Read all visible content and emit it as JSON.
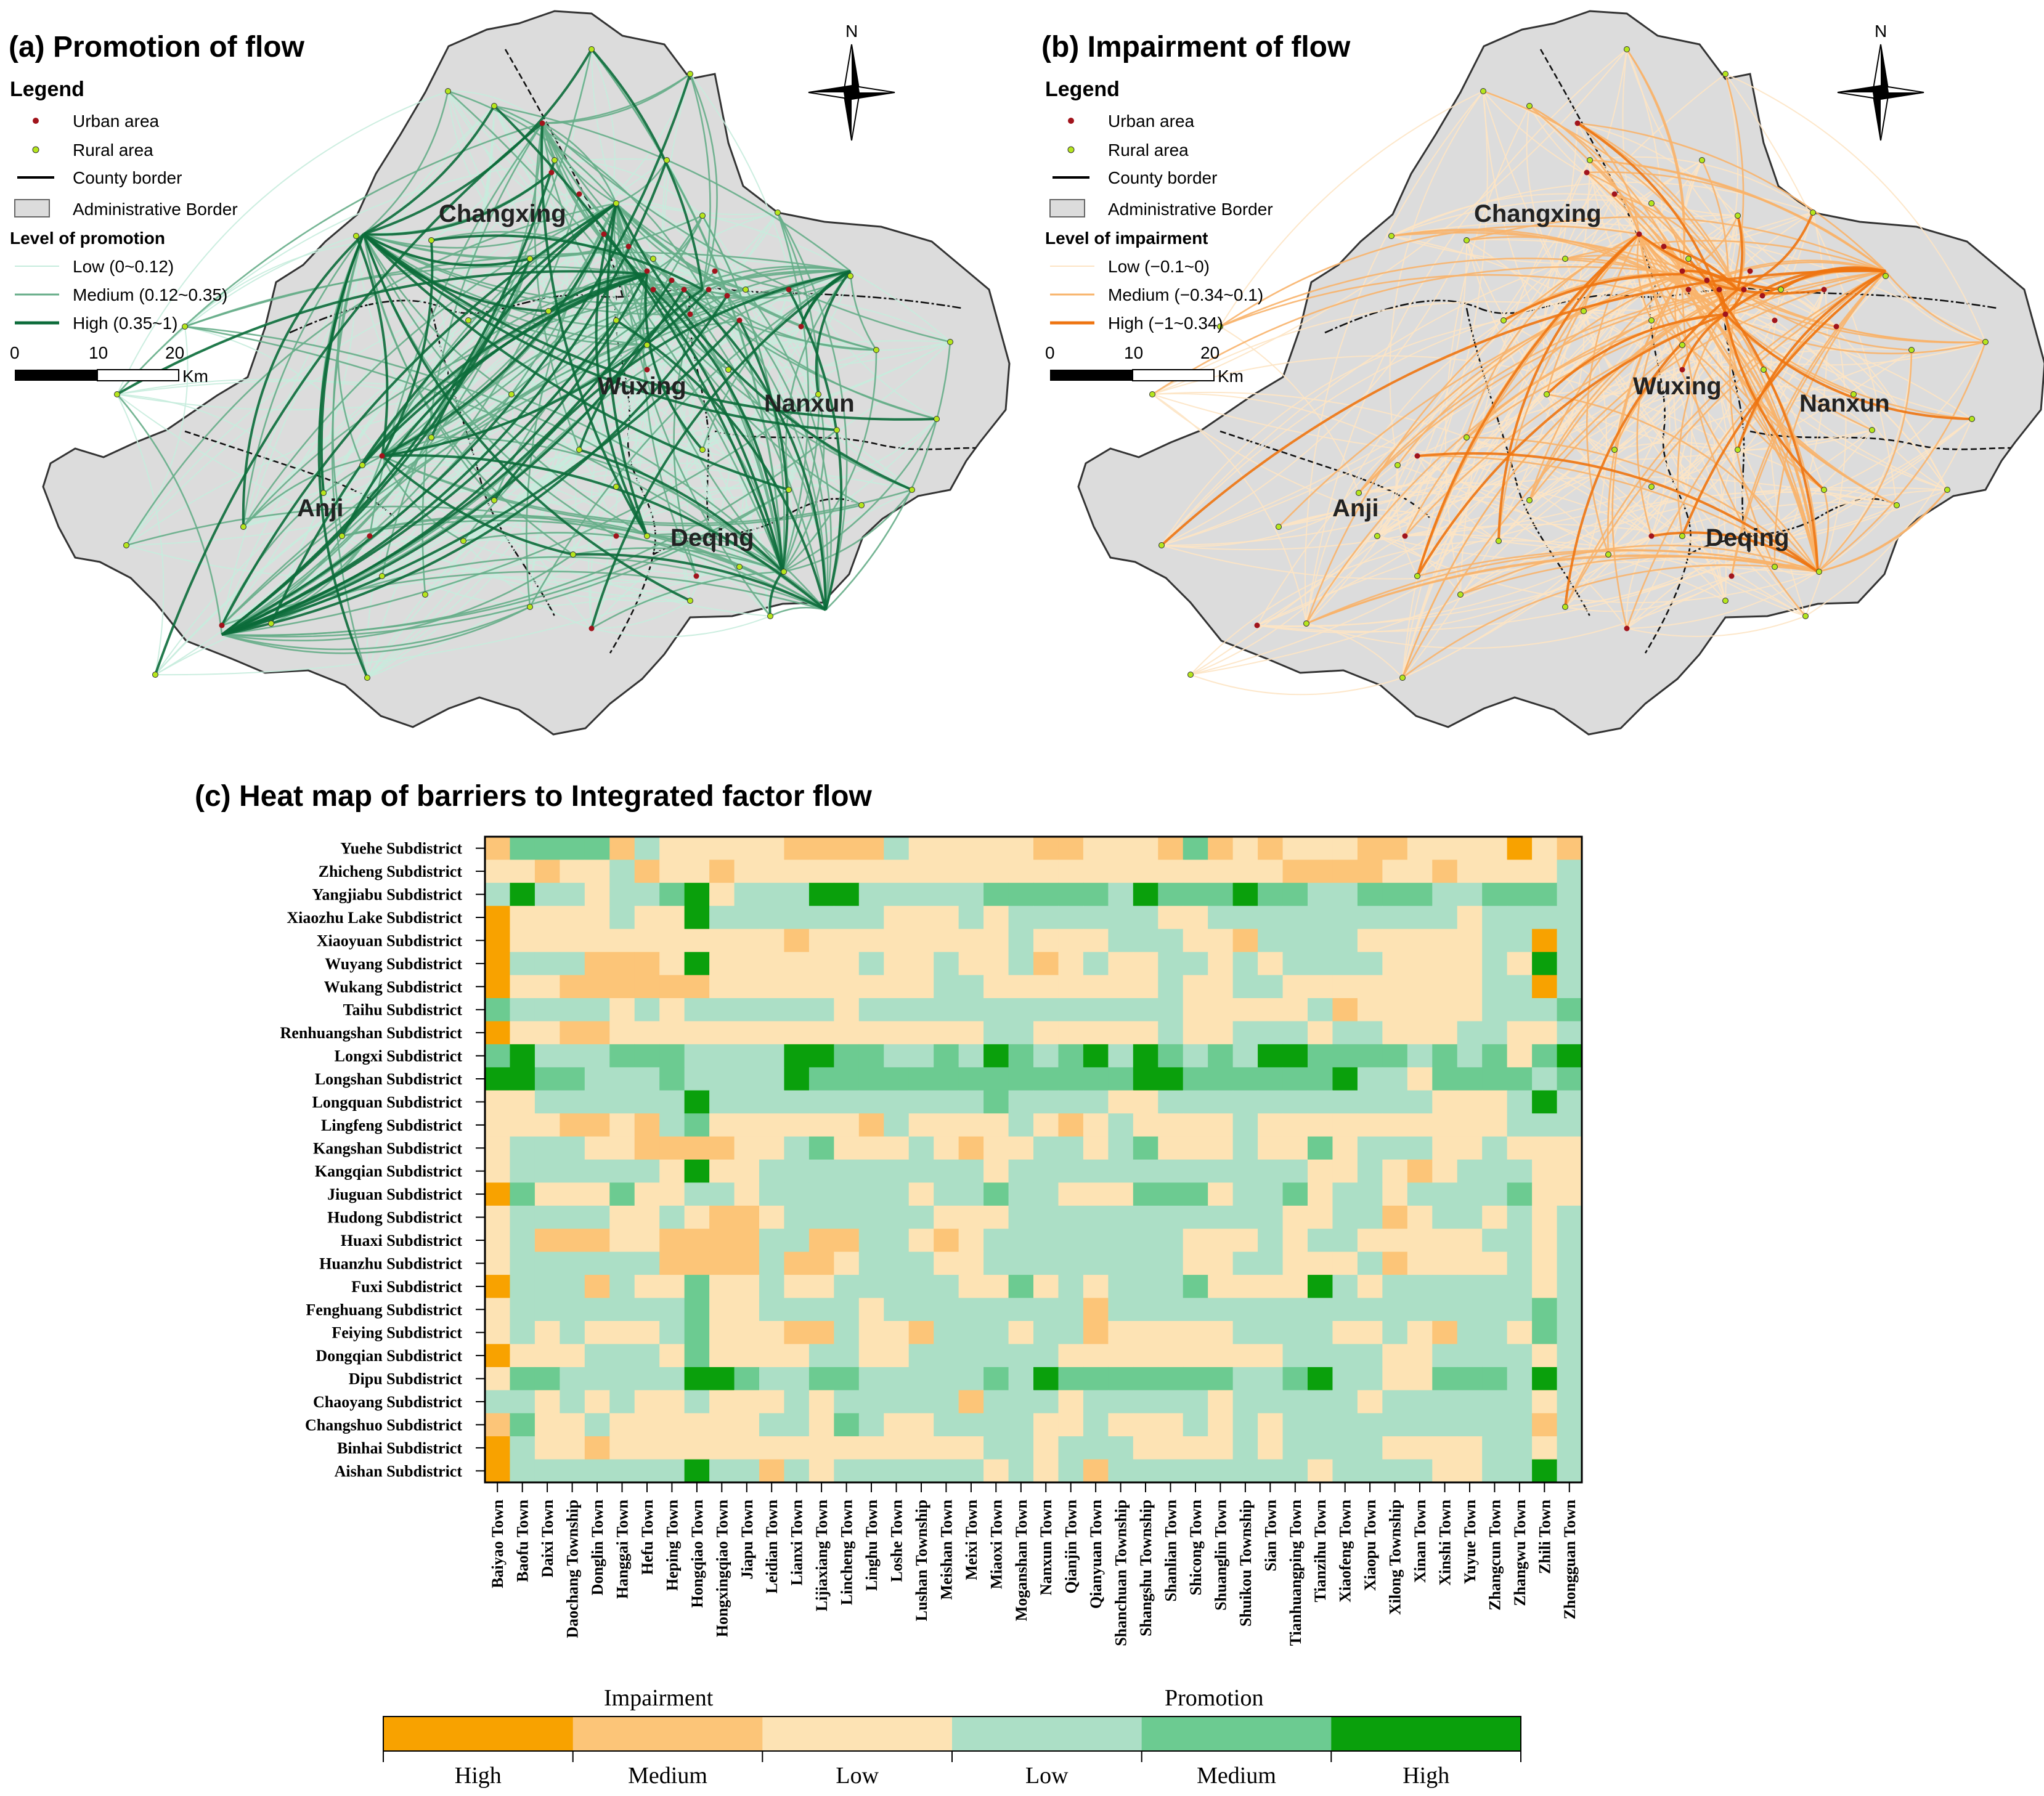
{
  "panel_a": {
    "title": "(a) Promotion of flow",
    "legend_title": "Legend",
    "urban": "Urban area",
    "rural": "Rural area",
    "county": "County border",
    "admin": "Administrative Border",
    "level_title": "Level of promotion",
    "low": "Low (0~0.12)",
    "medium": "Medium (0.12~0.35)",
    "high": "High (0.35~1)",
    "colors": {
      "low": "#c6ecdd",
      "medium": "#66ad88",
      "high": "#0b6b3a"
    }
  },
  "panel_b": {
    "title": "(b) Impairment of flow",
    "legend_title": "Legend",
    "urban": "Urban area",
    "rural": "Rural area",
    "county": "County border",
    "admin": "Administrative Border",
    "level_title": "Level of impairment",
    "low": "Low (−0.1~0)",
    "medium": "Medium (−0.34~0.1)",
    "high": "High (−1~0.34)",
    "colors": {
      "low": "#fde4c4",
      "medium": "#f8b36a",
      "high": "#ee7410"
    }
  },
  "scale": {
    "t0": "0",
    "t1": "10",
    "t2": "20",
    "unit": "Km"
  },
  "north": "N",
  "counties": [
    "Changxing",
    "Wuxing",
    "Nanxun",
    "Anji",
    "Deqing"
  ],
  "heatmap": {
    "title": "(c) Heat map of barriers to Integrated factor flow",
    "rows": [
      "Yuehe Subdistrict",
      "Zhicheng Subdistrict",
      "Yangjiabu Subdistrict",
      "Xiaozhu Lake Subdistrict",
      "Xiaoyuan Subdistrict",
      "Wuyang Subdistrict",
      "Wukang Subdistrict",
      "Taihu Subdistrict",
      "Renhuangshan Subdistrict",
      "Longxi Subdistrict",
      "Longshan Subdistrict",
      "Longquan Subdistrict",
      "Lingfeng Subdistrict",
      "Kangshan Subdistrict",
      "Kangqian Subdistrict",
      "Jiuguan Subdistrict",
      "Hudong Subdistrict",
      "Huaxi Subdistrict",
      "Huanzhu Subdistrict",
      "Fuxi Subdistrict",
      "Fenghuang Subdistrict",
      "Feiying Subdistrict",
      "Dongqian Subdistrict",
      "Dipu Subdistrict",
      "Chaoyang Subdistrict",
      "Changshuo Subdistrict",
      "Binhai Subdistrict",
      "Aishan Subdistrict"
    ],
    "cols": [
      "Baiyao Town",
      "Baofu Town",
      "Daixi Town",
      "Daochang Township",
      "Donglin Town",
      "Hanggai Town",
      "Hefu Town",
      "Heping Town",
      "Hongqiao Town",
      "Hongxingqiao Town",
      "Jiapu Town",
      "Leidian Town",
      "Lianxi Town",
      "Lijiaxiang Town",
      "Lincheng Town",
      "Linghu Town",
      "Loshe Town",
      "Lushan Township",
      "Meishan Town",
      "Meixi Town",
      "Miaoxi Town",
      "Moganshan Town",
      "Nanxun Town",
      "Qianjin Town",
      "Qianyuan Town",
      "Shanchuan Township",
      "Shangshu Township",
      "Shanlian Town",
      "Shicong Town",
      "Shuanglin Town",
      "Shuikou Township",
      "Sian Town",
      "Tianhuangping Town",
      "Tianzihu Town",
      "Xiaofeng Town",
      "Xiaopu Town",
      "Xilong Township",
      "Xinan Town",
      "Xinshi Town",
      "Yuyue Town",
      "Zhangcun Town",
      "Zhangwu Town",
      "Zhili Town",
      "Zhongguan Town"
    ],
    "category_labels": [
      "High impairment",
      "Medium impairment",
      "Low impairment",
      "Low promotion",
      "Medium promotion",
      "High promotion"
    ],
    "colors": [
      "#f8a200",
      "#fcc578",
      "#fde3b4",
      "#acdfc6",
      "#6ccb91",
      "#0aa00c"
    ],
    "grid": [
      "14444132222211113222221122214121222112222021",
      "22122312212222222222222222222222111122122223",
      "35332334523335533333444443544454433444334443",
      "02222322533333332223233333322333333333323333",
      "02222222222212222222232223332213333222223303",
      "03331112522222232232231232233232333322223253",
      "02211111122222222233222222232233222222223303",
      "43333232333333233333333333332222231222223334",
      "02211222222222222222332222232233323322233223",
      "45333444333355443343543453543435544443434245",
      "55443334333354444444444444554444445332444434",
      "22333333533333333333433332233333333333222353",
      "22211213422222213222232123222232222222222333",
      "23332211112234222321223323422232242333223222",
      "23333332522333333333233333333333322321233322",
      "04222422332333333233433222444233423323333422",
      "23333223211233333322233333333333223312332323",
      "23111221111331133212333333332223233222223323",
      "23333331111311233322333333332233222312222323",
      "03331322422322333332242323334222253233333323",
      "23333333422333323333333313333333333333333343",
      "23232223422211322133323312222233332232133243",
      "02223332422223322333333222222222333322333323",
      "24433333554334433333435444444433453322444353",
      "33232322322232333331333233333233333233333323",
      "14223222222332432233332232223232333333333313",
      "03221222222222222222332333222232333322223323",
      "03333333533132333333232313333333323333223353"
    ]
  },
  "colorbar": {
    "left_title": "Impairment",
    "right_title": "Promotion",
    "labels": [
      "High",
      "Medium",
      "Low",
      "Low",
      "Medium",
      "High"
    ]
  }
}
